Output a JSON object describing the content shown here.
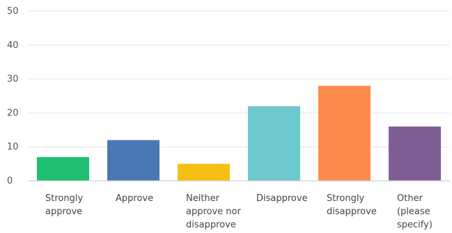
{
  "chart_data": {
    "type": "bar",
    "title": "",
    "xlabel": "",
    "ylabel": "",
    "ylim": [
      0,
      50
    ],
    "yticks": [
      0,
      10,
      20,
      30,
      40,
      50
    ],
    "grid": true,
    "legend": "none",
    "categories": [
      [
        "Strongly",
        "approve"
      ],
      [
        "Approve"
      ],
      [
        "Neither",
        "approve nor",
        "disapprove"
      ],
      [
        "Disapprove"
      ],
      [
        "Strongly",
        "disapprove"
      ],
      [
        "Other",
        "(please",
        "specify)"
      ]
    ],
    "values": [
      7,
      12,
      5,
      22,
      28,
      16
    ],
    "colors": [
      "#1fbf72",
      "#4a78b4",
      "#f6bf14",
      "#6ec9ce",
      "#fe8a4e",
      "#7e5f93"
    ]
  }
}
